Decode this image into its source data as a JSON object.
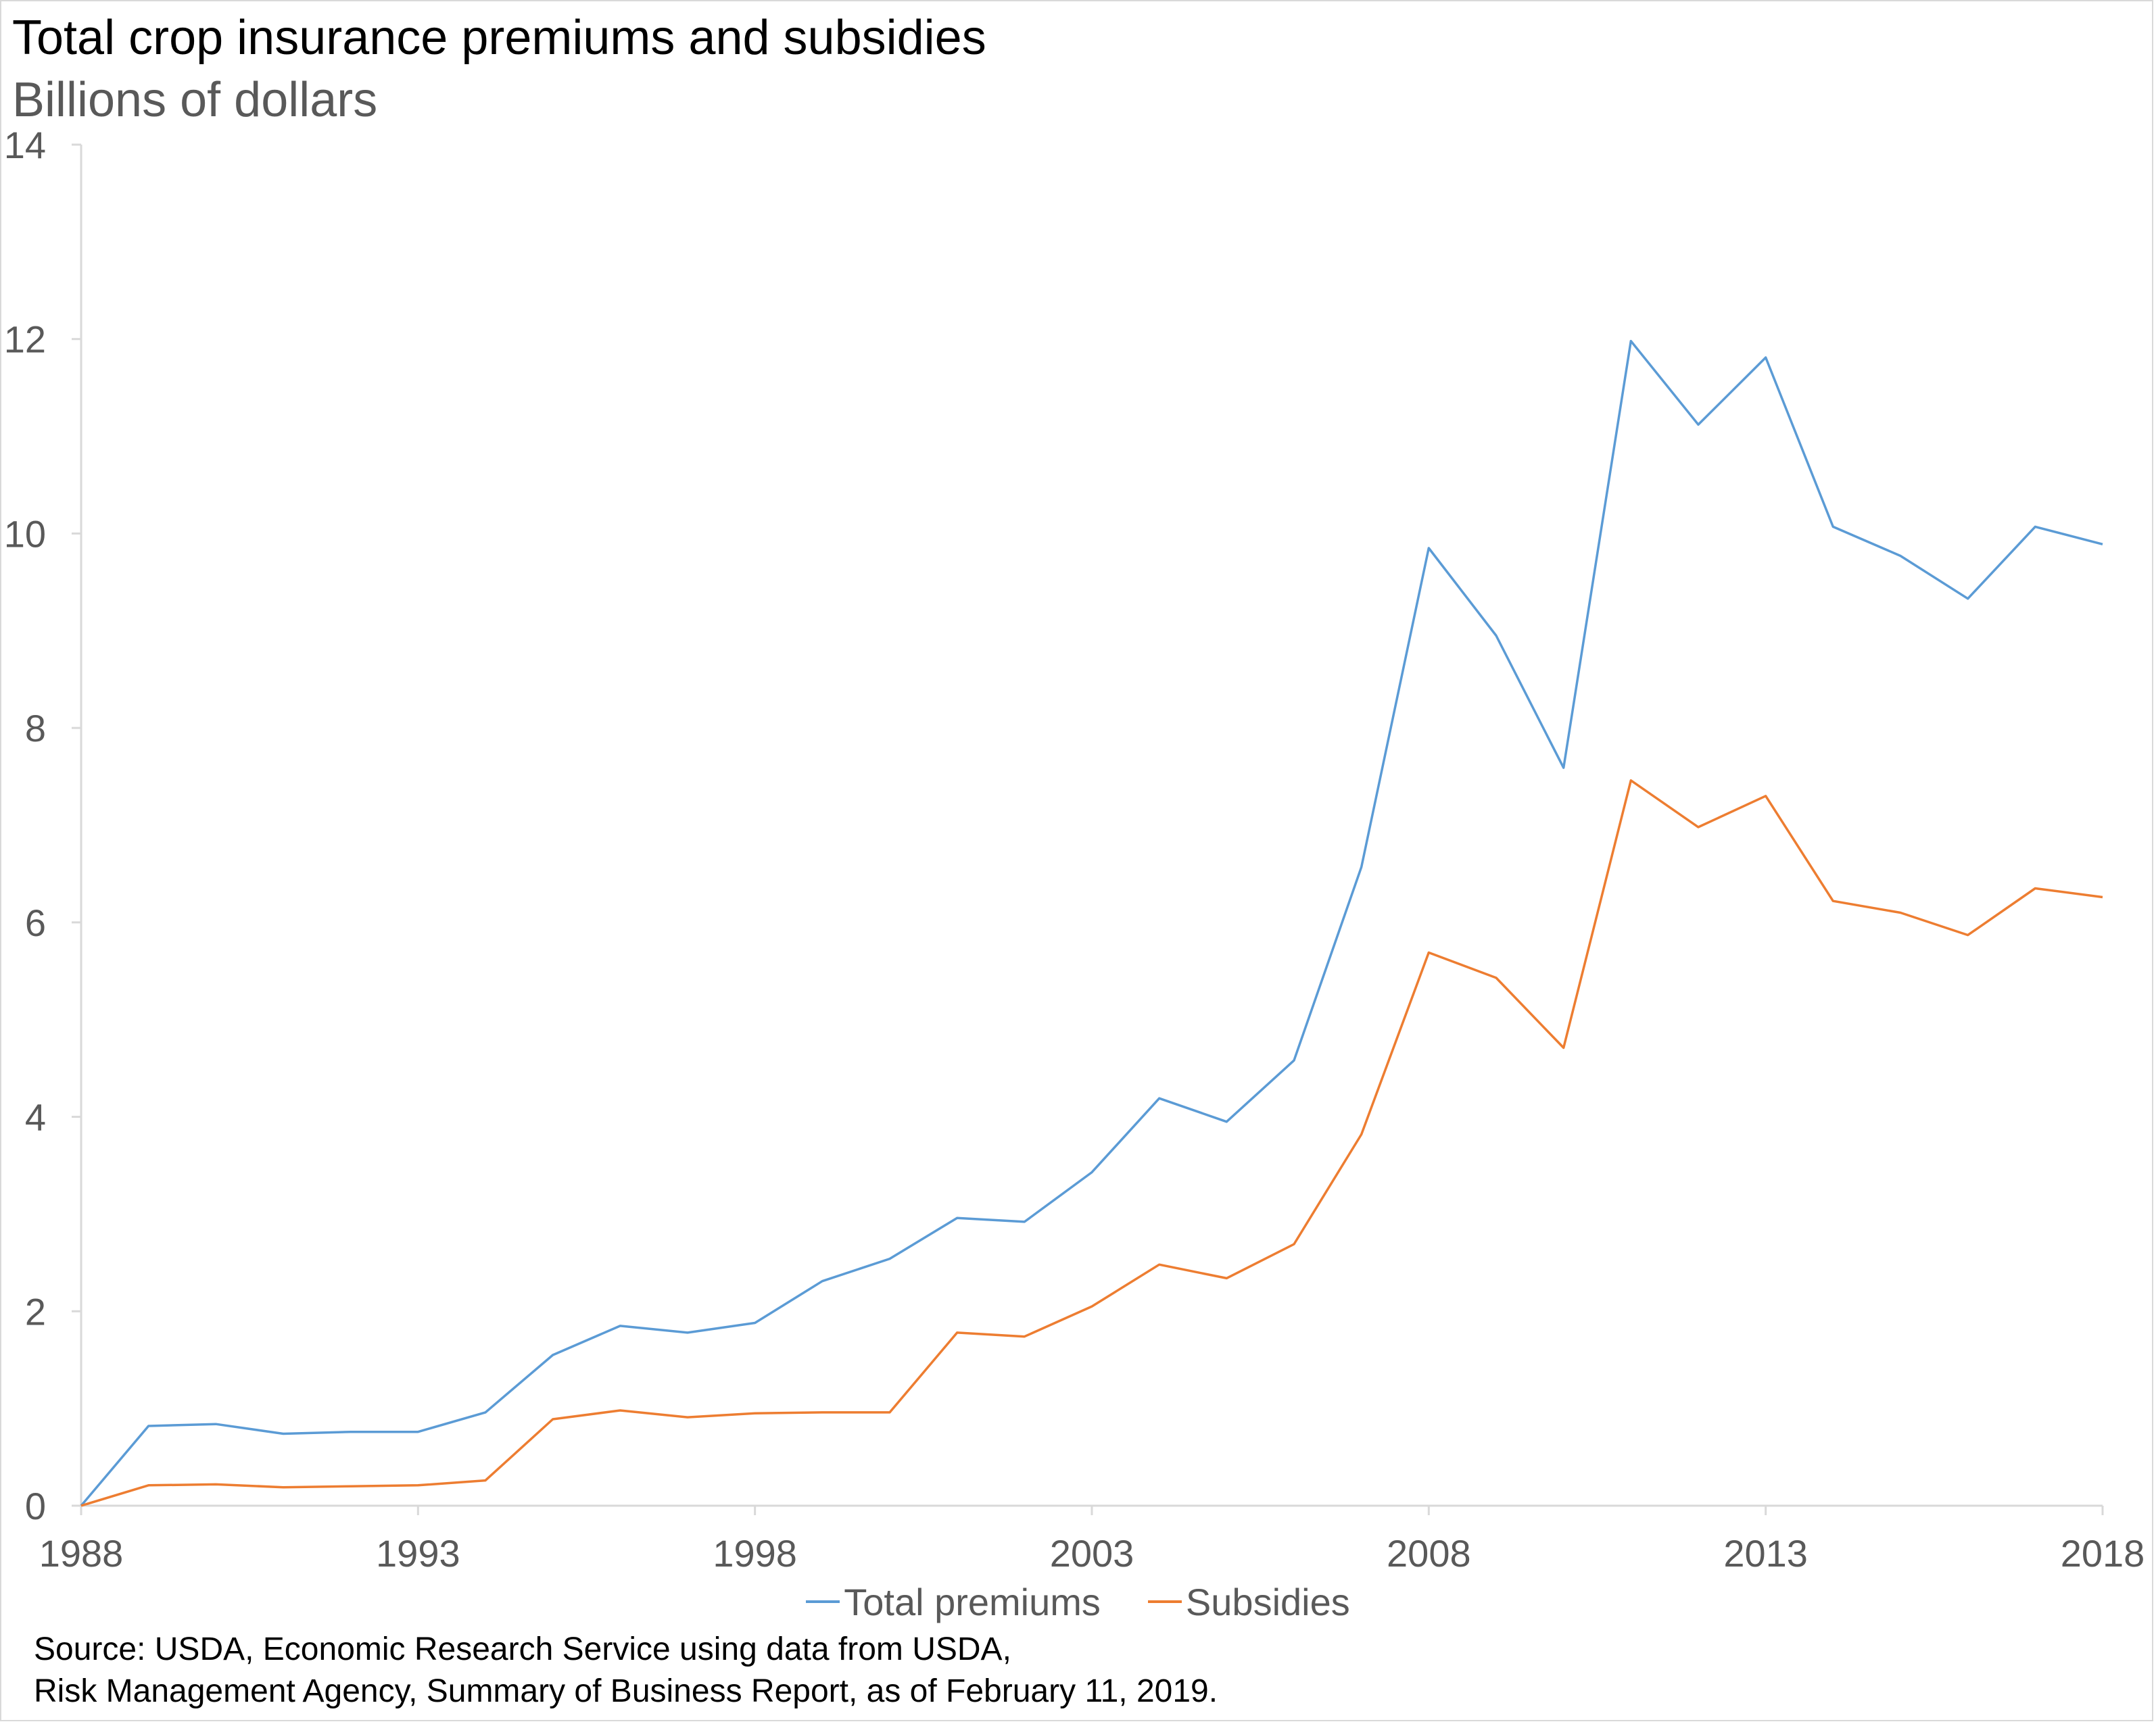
{
  "title": "Total crop insurance premiums and subsidies",
  "subtitle": "Billions of dollars",
  "source_lines": [
    "Source:  USDA, Economic Research Service using data from USDA,",
    "Risk Management Agency, Summary of Business Report, as of February 11, 2019."
  ],
  "colors": {
    "total_premiums": "#5b9bd5",
    "subsidies": "#ed7d31",
    "axis": "#d9d9d9",
    "tick_text": "#595959"
  },
  "chart_data": {
    "type": "line",
    "title": "Total crop insurance premiums and subsidies",
    "ylabel": "Billions of dollars",
    "xlabel": "",
    "xlim": [
      1988,
      2018
    ],
    "ylim": [
      0,
      14
    ],
    "x_ticks": [
      1988,
      1993,
      1998,
      2003,
      2008,
      2013,
      2018
    ],
    "y_ticks": [
      0,
      2,
      4,
      6,
      8,
      10,
      12,
      14
    ],
    "grid": false,
    "legend_position": "bottom",
    "x": [
      1988,
      1989,
      1990,
      1991,
      1992,
      1993,
      1994,
      1995,
      1996,
      1997,
      1998,
      1999,
      2000,
      2001,
      2002,
      2003,
      2004,
      2005,
      2006,
      2007,
      2008,
      2009,
      2010,
      2011,
      2012,
      2013,
      2014,
      2015,
      2016,
      2017,
      2018
    ],
    "series": [
      {
        "name": "Total premiums",
        "values": [
          0.0,
          0.82,
          0.84,
          0.74,
          0.76,
          0.76,
          0.96,
          1.55,
          1.85,
          1.78,
          1.88,
          2.31,
          2.54,
          2.96,
          2.92,
          3.43,
          4.19,
          3.95,
          4.58,
          6.57,
          9.85,
          8.95,
          7.59,
          11.98,
          11.12,
          11.81,
          10.07,
          9.77,
          9.33,
          10.07,
          9.89
        ],
        "color": "#5b9bd5"
      },
      {
        "name": "Subsidies",
        "values": [
          0.0,
          0.21,
          0.22,
          0.19,
          0.2,
          0.21,
          0.26,
          0.89,
          0.98,
          0.91,
          0.95,
          0.96,
          0.96,
          1.78,
          1.74,
          2.05,
          2.48,
          2.34,
          2.69,
          3.82,
          5.69,
          5.43,
          4.71,
          7.46,
          6.98,
          7.3,
          6.22,
          6.1,
          5.87,
          6.35,
          6.26
        ],
        "color": "#ed7d31"
      }
    ]
  }
}
